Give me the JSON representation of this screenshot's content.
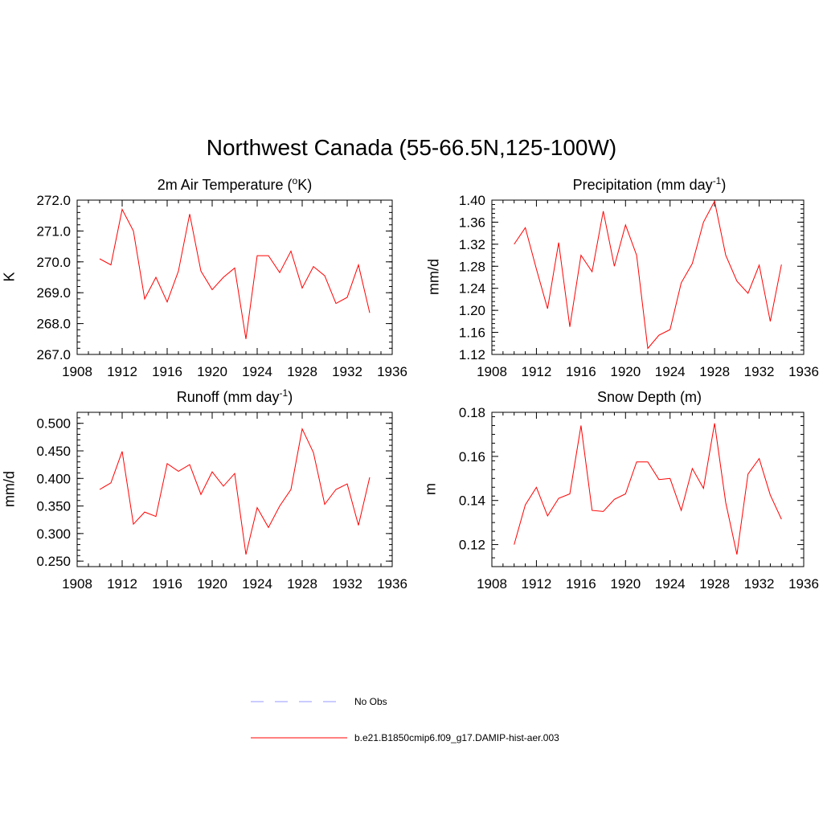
{
  "title": "Northwest Canada (55-66.5N,125-100W)",
  "legend": [
    {
      "label": "No Obs",
      "color": "#9999ff",
      "style": "dashed"
    },
    {
      "label": "b.e21.B1850cmip6.f09_g17.DAMIP-hist-aer.003",
      "color": "#ff0000",
      "style": "solid"
    }
  ],
  "chart_data": [
    {
      "type": "line",
      "title_main": "2m Air Temperature (",
      "title_sup": "o",
      "title_end": "K)",
      "ylabel": "K",
      "xlim": [
        1908,
        1936
      ],
      "xticks": [
        1908,
        1912,
        1916,
        1920,
        1924,
        1928,
        1932,
        1936
      ],
      "ylim": [
        267.0,
        272.0
      ],
      "yticks": [
        267.0,
        268.0,
        269.0,
        270.0,
        271.0,
        272.0
      ],
      "ytick_labels": [
        "267.0",
        "268.0",
        "269.0",
        "270.0",
        "271.0",
        "272.0"
      ],
      "x": [
        1910,
        1911,
        1912,
        1913,
        1914,
        1915,
        1916,
        1917,
        1918,
        1919,
        1920,
        1921,
        1922,
        1923,
        1924,
        1925,
        1926,
        1927,
        1928,
        1929,
        1930,
        1931,
        1932,
        1933,
        1934
      ],
      "series": [
        {
          "name": "b.e21.B1850cmip6.f09_g17.DAMIP-hist-aer.003",
          "color": "#ff0000",
          "values": [
            270.1,
            269.9,
            271.7,
            271.0,
            268.8,
            269.5,
            268.7,
            269.7,
            271.55,
            269.7,
            269.1,
            269.5,
            269.8,
            267.5,
            270.2,
            270.2,
            269.65,
            270.35,
            269.15,
            269.85,
            269.55,
            268.65,
            268.85,
            269.9,
            268.35
          ]
        }
      ]
    },
    {
      "type": "line",
      "title_main": "Precipitation (mm day",
      "title_sup": "-1",
      "title_end": ")",
      "ylabel": "mm/d",
      "xlim": [
        1908,
        1936
      ],
      "xticks": [
        1908,
        1912,
        1916,
        1920,
        1924,
        1928,
        1932,
        1936
      ],
      "ylim": [
        1.12,
        1.4
      ],
      "yticks": [
        1.12,
        1.16,
        1.2,
        1.24,
        1.28,
        1.32,
        1.36,
        1.4
      ],
      "ytick_labels": [
        "1.12",
        "1.16",
        "1.20",
        "1.24",
        "1.28",
        "1.32",
        "1.36",
        "1.40"
      ],
      "x": [
        1910,
        1911,
        1912,
        1913,
        1914,
        1915,
        1916,
        1917,
        1918,
        1919,
        1920,
        1921,
        1922,
        1923,
        1924,
        1925,
        1926,
        1927,
        1928,
        1929,
        1930,
        1931,
        1932,
        1933,
        1934
      ],
      "series": [
        {
          "name": "b.e21.B1850cmip6.f09_g17.DAMIP-hist-aer.003",
          "color": "#ff0000",
          "values": [
            1.32,
            1.35,
            1.275,
            1.203,
            1.323,
            1.17,
            1.3,
            1.27,
            1.38,
            1.28,
            1.355,
            1.3,
            1.131,
            1.155,
            1.165,
            1.25,
            1.285,
            1.36,
            1.398,
            1.3,
            1.253,
            1.231,
            1.282,
            1.18,
            1.283
          ]
        }
      ]
    },
    {
      "type": "line",
      "title_main": "Runoff (mm day",
      "title_sup": "-1",
      "title_end": ")",
      "ylabel": "mm/d",
      "xlim": [
        1908,
        1936
      ],
      "xticks": [
        1908,
        1912,
        1916,
        1920,
        1924,
        1928,
        1932,
        1936
      ],
      "ylim": [
        0.24,
        0.52
      ],
      "yticks": [
        0.25,
        0.3,
        0.35,
        0.4,
        0.45,
        0.5
      ],
      "ytick_labels": [
        "0.250",
        "0.300",
        "0.350",
        "0.400",
        "0.450",
        "0.500"
      ],
      "x": [
        1910,
        1911,
        1912,
        1913,
        1914,
        1915,
        1916,
        1917,
        1918,
        1919,
        1920,
        1921,
        1922,
        1923,
        1924,
        1925,
        1926,
        1927,
        1928,
        1929,
        1930,
        1931,
        1932,
        1933,
        1934
      ],
      "series": [
        {
          "name": "b.e21.B1850cmip6.f09_g17.DAMIP-hist-aer.003",
          "color": "#ff0000",
          "values": [
            0.38,
            0.392,
            0.449,
            0.317,
            0.339,
            0.331,
            0.427,
            0.413,
            0.425,
            0.371,
            0.412,
            0.386,
            0.409,
            0.262,
            0.347,
            0.311,
            0.35,
            0.38,
            0.49,
            0.447,
            0.353,
            0.38,
            0.39,
            0.315,
            0.402
          ]
        }
      ]
    },
    {
      "type": "line",
      "title_main": "Snow Depth (m)",
      "title_sup": "",
      "title_end": "",
      "ylabel": "m",
      "xlim": [
        1908,
        1936
      ],
      "xticks": [
        1908,
        1912,
        1916,
        1920,
        1924,
        1928,
        1932,
        1936
      ],
      "ylim": [
        0.11,
        0.18
      ],
      "yticks": [
        0.12,
        0.14,
        0.16,
        0.18
      ],
      "ytick_labels": [
        "0.12",
        "0.14",
        "0.16",
        "0.18"
      ],
      "x": [
        1910,
        1911,
        1912,
        1913,
        1914,
        1915,
        1916,
        1917,
        1918,
        1919,
        1920,
        1921,
        1922,
        1923,
        1924,
        1925,
        1926,
        1927,
        1928,
        1929,
        1930,
        1931,
        1932,
        1933,
        1934
      ],
      "series": [
        {
          "name": "b.e21.B1850cmip6.f09_g17.DAMIP-hist-aer.003",
          "color": "#ff0000",
          "values": [
            0.12,
            0.138,
            0.146,
            0.133,
            0.141,
            0.143,
            0.174,
            0.1355,
            0.135,
            0.1405,
            0.143,
            0.1575,
            0.1575,
            0.1495,
            0.15,
            0.1355,
            0.1545,
            0.1455,
            0.175,
            0.139,
            0.1155,
            0.152,
            0.159,
            0.1425,
            0.1315
          ]
        }
      ]
    }
  ]
}
